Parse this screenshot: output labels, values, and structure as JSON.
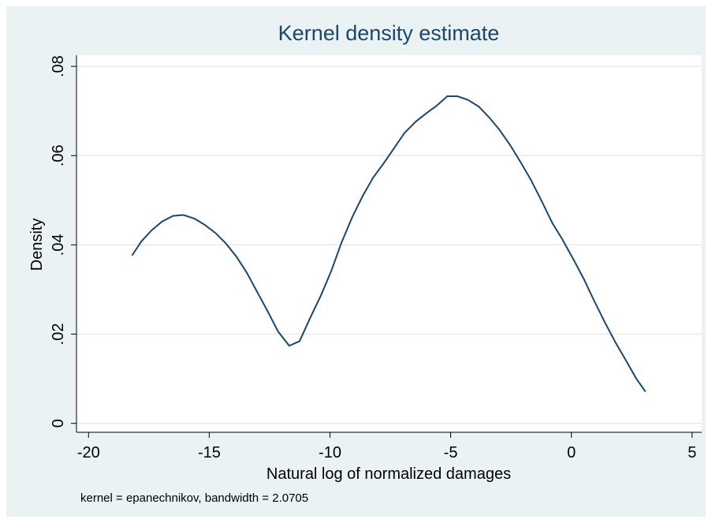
{
  "chart_data": {
    "type": "line",
    "title": "Kernel density estimate",
    "x_label": "Natural log of normalized damages",
    "y_label": "Density",
    "note": "kernel = epanechnikov, bandwidth = 2.0705",
    "x": [
      -18.2,
      -17.81,
      -17.38,
      -16.96,
      -16.5,
      -16.07,
      -15.62,
      -15.19,
      -14.73,
      -14.31,
      -13.88,
      -13.46,
      -13.0,
      -12.57,
      -12.15,
      -11.69,
      -11.26,
      -10.84,
      -10.38,
      -9.95,
      -9.53,
      -9.07,
      -8.65,
      -8.22,
      -7.76,
      -7.34,
      -6.91,
      -6.45,
      -6.03,
      -5.6,
      -5.14,
      -4.72,
      -4.29,
      -3.84,
      -3.41,
      -2.98,
      -2.53,
      -2.1,
      -1.68,
      -1.22,
      -0.79,
      -0.37,
      0.09,
      0.52,
      0.94,
      1.4,
      1.83,
      2.25,
      2.68,
      3.07
    ],
    "series": [
      {
        "color": "#1a476f",
        "values": [
          0.0376,
          0.0408,
          0.0433,
          0.0452,
          0.0465,
          0.0467,
          0.0459,
          0.0445,
          0.0426,
          0.0403,
          0.0374,
          0.0339,
          0.0293,
          0.025,
          0.0206,
          0.0174,
          0.0184,
          0.0234,
          0.0286,
          0.0341,
          0.0404,
          0.0463,
          0.0509,
          0.055,
          0.0584,
          0.0617,
          0.0651,
          0.0676,
          0.0694,
          0.0711,
          0.0733,
          0.0733,
          0.0725,
          0.071,
          0.0686,
          0.0658,
          0.0623,
          0.0585,
          0.0546,
          0.0497,
          0.0449,
          0.0412,
          0.0367,
          0.0323,
          0.0275,
          0.0225,
          0.0181,
          0.0142,
          0.0101,
          0.0071
        ]
      }
    ],
    "xlim": [
      -20.5,
      5.4
    ],
    "ylim": [
      -0.002,
      0.0825
    ],
    "xticks": [
      -20,
      -15,
      -10,
      -5,
      0,
      5
    ],
    "yticks": [
      0,
      {
        "value": 0.02,
        "label": ".02"
      },
      {
        "value": 0.04,
        "label": ".04"
      },
      {
        "value": 0.06,
        "label": ".06"
      },
      {
        "value": 0.08,
        "label": ".08"
      }
    ],
    "grid": true
  }
}
